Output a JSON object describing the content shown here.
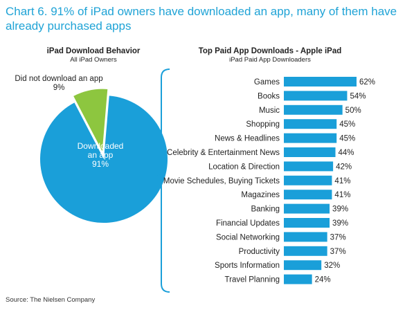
{
  "title": "Chart 6. 91% of iPad owners have downloaded an app, many of them have already purchased apps",
  "source": "Source: The Nielsen Company",
  "colors": {
    "title": "#1fa3d6",
    "downloaded": "#1a9fd9",
    "not_downloaded": "#8dc63f",
    "bar": "#1a9fd9",
    "bracket": "#1a9fd9"
  },
  "chart_data": [
    {
      "type": "pie",
      "title": "iPad Download Behavior",
      "subtitle": "All iPad Owners",
      "slices": [
        {
          "label": "Downloaded an app",
          "value": 91,
          "value_label": "91%",
          "color": "#1a9fd9"
        },
        {
          "label": "Did not download an app",
          "value": 9,
          "value_label": "9%",
          "color": "#8dc63f"
        }
      ]
    },
    {
      "type": "bar",
      "orientation": "horizontal",
      "title": "Top Paid App Downloads - Apple iPad",
      "subtitle": "iPad Paid App Downloaders",
      "categories": [
        "Games",
        "Books",
        "Music",
        "Shopping",
        "News & Headlines",
        "Celebrity & Entertainment News",
        "Location & Direction",
        "Movie Schedules, Buying Tickets",
        "Magazines",
        "Banking",
        "Financial Updates",
        "Social Networking",
        "Productivity",
        "Sports Information",
        "Travel Planning"
      ],
      "values": [
        62,
        54,
        50,
        45,
        45,
        44,
        42,
        41,
        41,
        39,
        39,
        37,
        37,
        32,
        24
      ],
      "value_labels": [
        "62%",
        "54%",
        "50%",
        "45%",
        "45%",
        "44%",
        "42%",
        "41%",
        "41%",
        "39%",
        "39%",
        "37%",
        "37%",
        "32%",
        "24%"
      ],
      "xlim": [
        0,
        62
      ],
      "grid": false,
      "legend": "none"
    }
  ]
}
